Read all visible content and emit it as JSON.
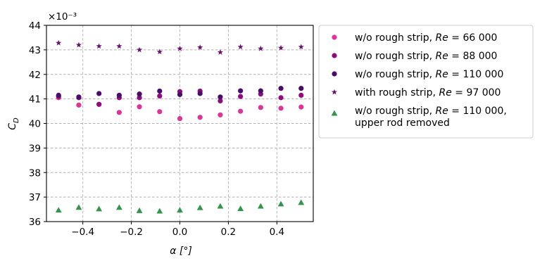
{
  "chart_data": {
    "type": "scatter",
    "xlabel": "α [°]",
    "ylabel": "C_D",
    "y_scale_label": "×10⁻³",
    "xlim": [
      -0.55,
      0.55
    ],
    "ylim": [
      36,
      44
    ],
    "xticks": [
      -0.4,
      -0.2,
      0.0,
      0.2,
      0.4
    ],
    "xtick_labels": [
      "−0.4",
      "−0.2",
      "0.0",
      "0.2",
      "0.4"
    ],
    "yticks": [
      36,
      37,
      38,
      39,
      40,
      41,
      42,
      43,
      44
    ],
    "ytick_labels": [
      "36",
      "37",
      "38",
      "39",
      "40",
      "41",
      "42",
      "43",
      "44"
    ],
    "grid": true,
    "legend_position": "outside-right",
    "series": [
      {
        "legend_prefix": "w/o rough strip, ",
        "legend_re": "Re",
        "legend_suffix": " = 66 000",
        "legend_line2": "",
        "marker": "circle",
        "color": "#dd3497",
        "x": [
          -0.5,
          -0.4167,
          -0.3333,
          -0.25,
          -0.1667,
          -0.0833,
          0.0,
          0.0833,
          0.1667,
          0.25,
          0.3333,
          0.4167,
          0.5
        ],
        "y": [
          41.05,
          40.75,
          40.78,
          40.45,
          40.68,
          40.48,
          40.2,
          40.25,
          40.35,
          40.5,
          40.65,
          40.62,
          40.67
        ]
      },
      {
        "legend_prefix": "w/o rough strip, ",
        "legend_re": "Re",
        "legend_suffix": " = 88 000",
        "legend_line2": "",
        "marker": "circle",
        "color": "#8e0c7f",
        "x": [
          -0.5,
          -0.4167,
          -0.3333,
          -0.25,
          -0.1667,
          -0.0833,
          0.0,
          0.0833,
          0.1667,
          0.25,
          0.3333,
          0.4167,
          0.5
        ],
        "y": [
          41.1,
          41.05,
          40.78,
          41.05,
          41.05,
          41.12,
          41.3,
          41.32,
          40.92,
          41.1,
          41.2,
          41.05,
          41.15
        ]
      },
      {
        "legend_prefix": "w/o rough strip, ",
        "legend_re": "Re",
        "legend_suffix": " = 110 000",
        "legend_line2": "",
        "marker": "circle",
        "color": "#4a0c6b",
        "x": [
          -0.5,
          -0.4167,
          -0.3333,
          -0.25,
          -0.1667,
          -0.0833,
          0.0,
          0.0833,
          0.1667,
          0.25,
          0.3333,
          0.4167,
          0.5
        ],
        "y": [
          41.15,
          41.08,
          41.22,
          41.15,
          41.2,
          41.32,
          41.18,
          41.22,
          41.08,
          41.33,
          41.33,
          41.43,
          41.43
        ]
      },
      {
        "legend_prefix": "with rough strip, ",
        "legend_re": "Re",
        "legend_suffix": " = 97 000",
        "legend_line2": "",
        "marker": "star",
        "color": "#6a1172",
        "x": [
          -0.5,
          -0.4167,
          -0.3333,
          -0.25,
          -0.1667,
          -0.0833,
          0.0,
          0.0833,
          0.1667,
          0.25,
          0.3333,
          0.4167,
          0.5
        ],
        "y": [
          43.28,
          43.2,
          43.15,
          43.15,
          43.0,
          42.92,
          43.05,
          43.1,
          42.9,
          43.12,
          43.05,
          43.08,
          43.12
        ]
      },
      {
        "legend_prefix": "w/o rough strip, ",
        "legend_re": "Re",
        "legend_suffix": " = 110 000,",
        "legend_line2": "upper rod removed",
        "marker": "triangle",
        "color": "#31954c",
        "x": [
          -0.5,
          -0.4167,
          -0.3333,
          -0.25,
          -0.1667,
          -0.0833,
          0.0,
          0.0833,
          0.1667,
          0.25,
          0.3333,
          0.4167,
          0.5
        ],
        "y": [
          36.47,
          36.58,
          36.52,
          36.58,
          36.45,
          36.43,
          36.47,
          36.57,
          36.63,
          36.53,
          36.63,
          36.72,
          36.78
        ]
      }
    ]
  }
}
